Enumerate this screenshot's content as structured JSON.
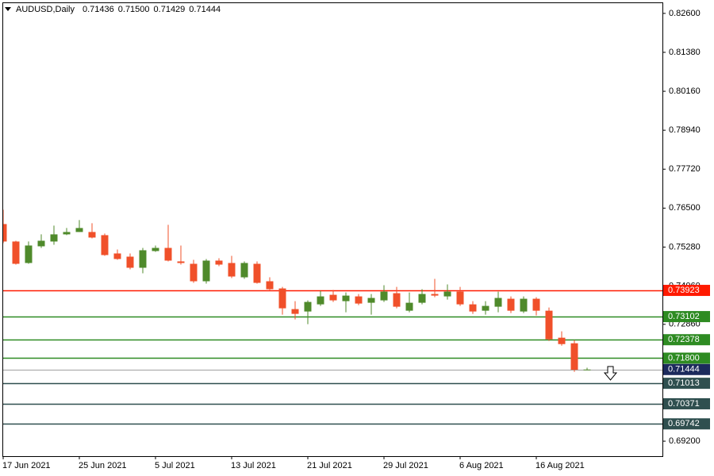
{
  "chart_data": {
    "type": "candlestick",
    "title": "AUDUSD,Daily",
    "header_values": [
      "0.71436",
      "0.71500",
      "0.71429",
      "0.71444"
    ],
    "categories": [
      "17 Jun 2021",
      null,
      null,
      null,
      null,
      null,
      "25 Jun 2021",
      null,
      null,
      null,
      null,
      null,
      "5 Jul 2021",
      null,
      null,
      null,
      null,
      null,
      "13 Jul 2021",
      null,
      null,
      null,
      null,
      null,
      "21 Jul 2021",
      null,
      null,
      null,
      null,
      null,
      "29 Jul 2021",
      null,
      null,
      null,
      null,
      null,
      "6 Aug 2021",
      null,
      null,
      null,
      null,
      null,
      "16 Aug 2021",
      null,
      null,
      null,
      null
    ],
    "open": [
      0.76001,
      0.75454,
      0.74781,
      0.75304,
      0.75454,
      0.75678,
      0.75752,
      0.75752,
      0.75653,
      0.7508,
      0.7498,
      0.74632,
      0.75155,
      0.75254,
      0.74831,
      0.74756,
      0.74209,
      0.74856,
      0.74781,
      0.74333,
      0.74756,
      0.74209,
      0.73984,
      0.73337,
      0.73262,
      0.73486,
      0.73785,
      0.73586,
      0.73735,
      0.73536,
      0.73611,
      0.73835,
      0.73287,
      0.73536,
      0.7381,
      0.73735,
      0.73885,
      0.73486,
      0.73287,
      0.73412,
      0.73661,
      0.73262,
      0.73661,
      0.73287,
      0.72441,
      0.72266,
      0.71436
    ],
    "high": [
      0.7645,
      0.75478,
      0.75454,
      0.75678,
      0.75952,
      0.75877,
      0.76126,
      0.76026,
      0.75703,
      0.75205,
      0.7508,
      0.75254,
      0.75329,
      0.75976,
      0.75329,
      0.74881,
      0.74906,
      0.74931,
      0.75005,
      0.74831,
      0.74831,
      0.74333,
      0.74034,
      0.73586,
      0.73611,
      0.7391,
      0.73935,
      0.7386,
      0.7381,
      0.7381,
      0.74084,
      0.74034,
      0.7386,
      0.7396,
      0.74283,
      0.74109,
      0.74034,
      0.73586,
      0.73586,
      0.73885,
      0.73735,
      0.73735,
      0.73711,
      0.73387,
      0.7264,
      0.72366,
      0.715
    ],
    "low": [
      0.75404,
      0.74731,
      0.74756,
      0.75254,
      0.75354,
      0.75653,
      0.75752,
      0.75553,
      0.75005,
      0.74881,
      0.74582,
      0.74458,
      0.7513,
      0.74831,
      0.74731,
      0.74159,
      0.74134,
      0.74682,
      0.74308,
      0.74283,
      0.74134,
      0.73935,
      0.73163,
      0.73013,
      0.72864,
      0.73437,
      0.73561,
      0.73237,
      0.73462,
      0.73163,
      0.73561,
      0.73362,
      0.73237,
      0.73486,
      0.73711,
      0.73636,
      0.73437,
      0.73188,
      0.73163,
      0.73237,
      0.73213,
      0.73213,
      0.73138,
      0.72341,
      0.72192,
      0.7137,
      0.71429
    ],
    "close": [
      0.75454,
      0.74756,
      0.75329,
      0.75478,
      0.75678,
      0.75752,
      0.75877,
      0.75578,
      0.7503,
      0.74906,
      0.74632,
      0.7518,
      0.75254,
      0.74856,
      0.74781,
      0.74209,
      0.74856,
      0.74731,
      0.74358,
      0.74781,
      0.74159,
      0.7396,
      0.73362,
      0.73188,
      0.73561,
      0.73735,
      0.73611,
      0.7376,
      0.73511,
      0.73686,
      0.73885,
      0.73412,
      0.73536,
      0.7381,
      0.7376,
      0.73885,
      0.73486,
      0.73262,
      0.73437,
      0.73686,
      0.73287,
      0.73661,
      0.73287,
      0.72391,
      0.72241,
      0.71436,
      0.71444
    ],
    "up_color": "#4f8a2b",
    "down_color": "#f0502a",
    "ylim": [
      0.6873,
      0.8292
    ],
    "yticks": [
      {
        "value": 0.826,
        "label": "0.82600"
      },
      {
        "value": 0.8138,
        "label": "0.81380"
      },
      {
        "value": 0.8016,
        "label": "0.80160"
      },
      {
        "value": 0.7894,
        "label": "0.78940"
      },
      {
        "value": 0.7772,
        "label": "0.77720"
      },
      {
        "value": 0.765,
        "label": "0.76500"
      },
      {
        "value": 0.7528,
        "label": "0.75280"
      },
      {
        "value": 0.7406,
        "label": "0.74060"
      },
      {
        "value": 0.7286,
        "label": "0.72860"
      },
      {
        "value": 0.692,
        "label": "0.69200"
      }
    ],
    "levels": [
      {
        "value": 0.73923,
        "label": "0.73923",
        "color": "#ff1a00"
      },
      {
        "value": 0.73102,
        "label": "0.73102",
        "color": "#2e8b22"
      },
      {
        "value": 0.72378,
        "label": "0.72378",
        "color": "#2e8b22"
      },
      {
        "value": 0.718,
        "label": "0.71800",
        "color": "#2e8b22"
      },
      {
        "value": 0.71444,
        "label": "0.71444",
        "color": "#1c2a5c"
      },
      {
        "value": 0.71013,
        "label": "0.71013",
        "color": "#2f4f4f"
      },
      {
        "value": 0.70371,
        "label": "0.70371",
        "color": "#2f4f4f"
      },
      {
        "value": 0.69742,
        "label": "0.69742",
        "color": "#2f4f4f"
      }
    ]
  }
}
